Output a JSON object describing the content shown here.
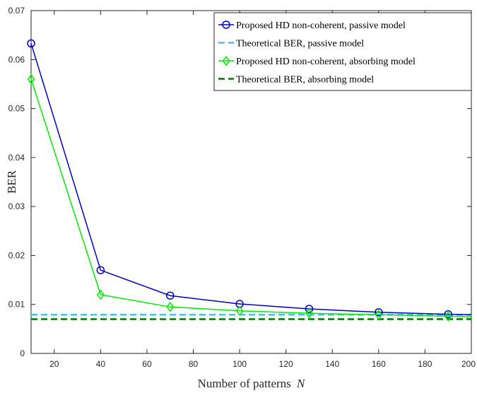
{
  "chart_data": {
    "type": "line",
    "title": "",
    "xlabel": "Number of patterns",
    "xlabel_var": "N",
    "ylabel": "BER",
    "xlim": [
      10,
      200
    ],
    "ylim": [
      0,
      0.07
    ],
    "x_ticks": [
      20,
      40,
      60,
      80,
      100,
      120,
      140,
      160,
      180,
      200
    ],
    "x_tick_labels": [
      "20",
      "40",
      "60",
      "80",
      "100",
      "120",
      "140",
      "160",
      "180",
      "200"
    ],
    "y_ticks": [
      0,
      0.01,
      0.02,
      0.03,
      0.04,
      0.05,
      0.06,
      0.07
    ],
    "y_tick_labels": [
      "0",
      "0.01",
      "0.02",
      "0.03",
      "0.04",
      "0.05",
      "0.06",
      "0.07"
    ],
    "grid": false,
    "legend_position": "top-right",
    "series": [
      {
        "name": "Proposed HD non-coherent, passive model",
        "style": "solid",
        "marker": "circle",
        "color": "#0000CC",
        "x": [
          10,
          40,
          70,
          100,
          130,
          160,
          190,
          200
        ],
        "y": [
          0.0633,
          0.017,
          0.0118,
          0.0101,
          0.0091,
          0.0084,
          0.008,
          0.0079
        ]
      },
      {
        "name": "Theoretical BER, passive model",
        "style": "dashed",
        "marker": "none",
        "color": "#4DBEEE",
        "x": [
          10,
          200
        ],
        "y": [
          0.0079,
          0.0079
        ]
      },
      {
        "name": "Proposed HD non-coherent, absorbing model",
        "style": "solid",
        "marker": "diamond",
        "color": "#00EE00",
        "x": [
          10,
          40,
          70,
          100,
          130,
          160,
          190,
          200
        ],
        "y": [
          0.056,
          0.012,
          0.0095,
          0.0087,
          0.0082,
          0.0079,
          0.0076,
          0.0075
        ]
      },
      {
        "name": "Theoretical BER, absorbing model",
        "style": "dashed",
        "marker": "none",
        "color": "#007700",
        "x": [
          10,
          200
        ],
        "y": [
          0.007,
          0.007
        ]
      }
    ]
  }
}
